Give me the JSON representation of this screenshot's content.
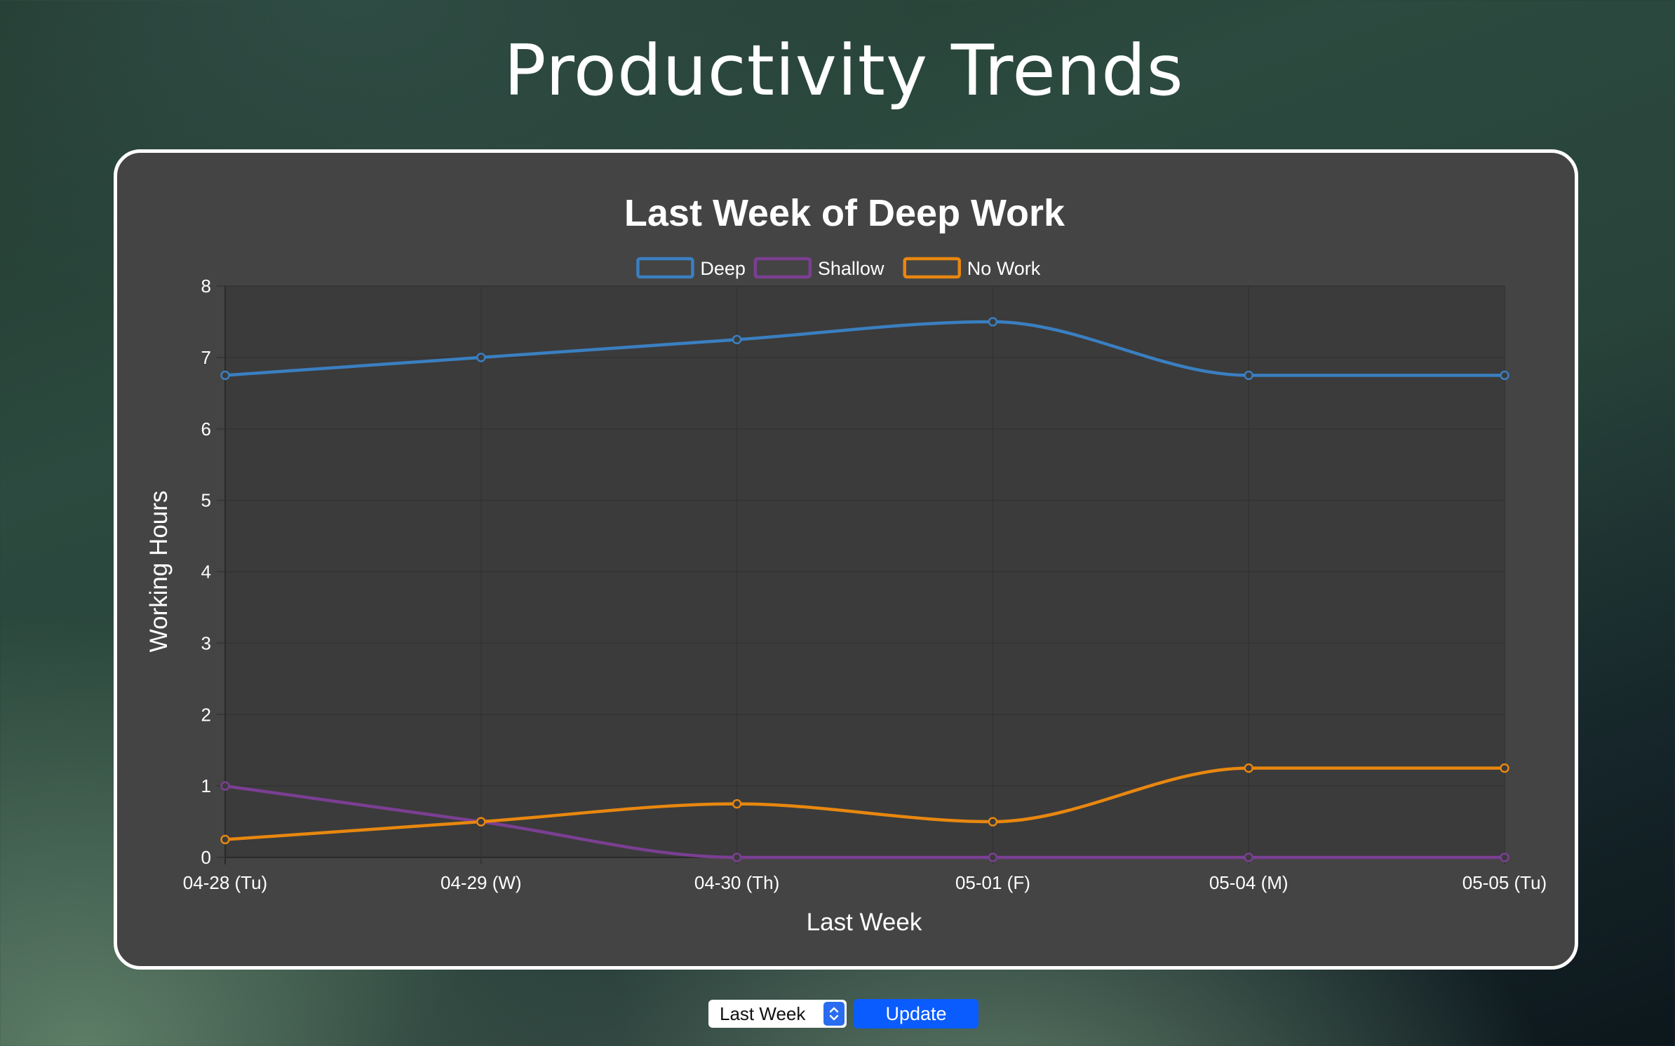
{
  "page": {
    "title": "Productivity Trends"
  },
  "controls": {
    "range_value": "Last Week",
    "update_label": "Update"
  },
  "chart_data": {
    "type": "line",
    "title": "Last Week of Deep Work",
    "xlabel": "Last Week",
    "ylabel": "Working Hours",
    "categories": [
      "04-28 (Tu)",
      "04-29 (W)",
      "04-30 (Th)",
      "05-01 (F)",
      "05-04 (M)",
      "05-05 (Tu)"
    ],
    "ylim": [
      0,
      8
    ],
    "yticks": [
      0,
      1,
      2,
      3,
      4,
      5,
      6,
      7,
      8
    ],
    "grid": true,
    "legend": "top",
    "series": [
      {
        "name": "Deep",
        "color": "#3a7fc1",
        "values": [
          6.75,
          7,
          7.25,
          7.5,
          6.75,
          6.75
        ]
      },
      {
        "name": "Shallow",
        "color": "#7b3f93",
        "values": [
          1,
          0.5,
          0,
          0,
          0,
          0
        ]
      },
      {
        "name": "No Work",
        "color": "#e8870f",
        "values": [
          0.25,
          0.5,
          0.75,
          0.5,
          1.25,
          1.25
        ]
      }
    ]
  }
}
